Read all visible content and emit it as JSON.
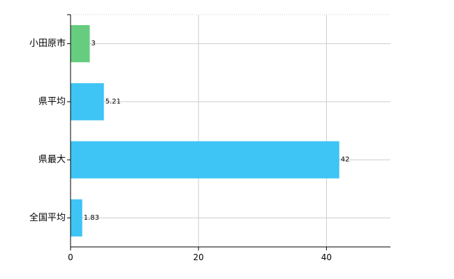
{
  "chart_data": {
    "type": "bar",
    "orientation": "horizontal",
    "categories": [
      "小田原市",
      "県平均",
      "県最大",
      "全国平均"
    ],
    "values": [
      3,
      5.21,
      42,
      1.83
    ],
    "data_labels": [
      "3",
      "5.21",
      "42",
      "1.83"
    ],
    "colors": [
      "#66cc7f",
      "#3ec4f5",
      "#3ec4f5",
      "#3ec4f5"
    ],
    "xlim": [
      0,
      50
    ],
    "x_ticks": [
      0,
      20,
      40
    ],
    "x_tick_labels": [
      "0",
      "20",
      "40"
    ],
    "grid": true,
    "legend": "none",
    "title": "",
    "xlabel": "",
    "ylabel": ""
  }
}
